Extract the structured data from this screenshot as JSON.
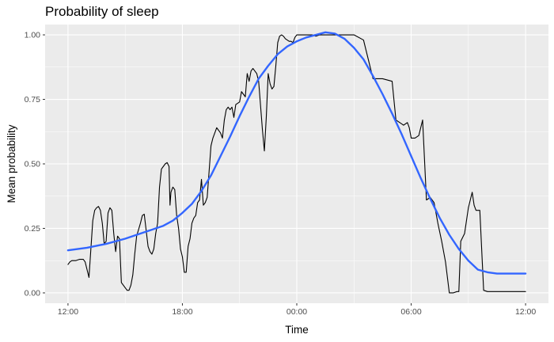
{
  "chart_data": {
    "type": "line",
    "title": "Probability of sleep",
    "xlabel": "Time",
    "ylabel": "Mean probability",
    "x_ticks": [
      "12:00",
      "18:00",
      "00:00",
      "06:00",
      "12:00"
    ],
    "x_tick_hours": [
      0,
      6,
      12,
      18,
      24
    ],
    "y_ticks": [
      "0.00",
      "0.25",
      "0.50",
      "0.75",
      "1.00"
    ],
    "xlim_hours_since_noon": [
      -1.2,
      25.2
    ],
    "ylim": [
      -0.04,
      1.04
    ],
    "grid": true,
    "legend": "none",
    "series": [
      {
        "color": "#000000",
        "x": [
          0.0,
          0.1,
          0.2,
          0.4,
          0.6,
          0.8,
          0.9,
          1.0,
          1.1,
          1.3,
          1.4,
          1.5,
          1.6,
          1.7,
          1.8,
          1.9,
          2.0,
          2.1,
          2.2,
          2.3,
          2.4,
          2.5,
          2.6,
          2.7,
          2.8,
          2.9,
          3.0,
          3.1,
          3.2,
          3.3,
          3.4,
          3.5,
          3.6,
          3.8,
          3.9,
          4.0,
          4.2,
          4.3,
          4.4,
          4.5,
          4.6,
          4.7,
          4.8,
          4.9,
          5.0,
          5.1,
          5.2,
          5.3,
          5.35,
          5.4,
          5.5,
          5.6,
          5.7,
          5.8,
          5.9,
          6.0,
          6.1,
          6.2,
          6.3,
          6.4,
          6.5,
          6.6,
          6.7,
          6.8,
          6.9,
          7.0,
          7.1,
          7.2,
          7.3,
          7.5,
          7.6,
          7.8,
          8.0,
          8.1,
          8.2,
          8.3,
          8.4,
          8.5,
          8.6,
          8.7,
          8.8,
          9.0,
          9.1,
          9.3,
          9.4,
          9.5,
          9.6,
          9.7,
          9.8,
          9.9,
          10.0,
          10.2,
          10.3,
          10.4,
          10.5,
          10.6,
          10.7,
          10.8,
          10.9,
          11.0,
          11.1,
          11.2,
          11.3,
          11.4,
          11.5,
          11.6,
          11.7,
          11.8,
          11.9,
          12.0,
          12.1,
          12.2,
          12.4,
          12.6,
          12.8,
          13.0,
          13.2,
          13.4,
          13.6,
          13.8,
          14.0,
          14.2,
          14.4,
          14.6,
          14.8,
          15.0,
          15.5,
          16.0,
          16.5,
          17.0,
          17.2,
          17.4,
          17.6,
          17.8,
          17.9,
          18.0,
          18.2,
          18.4,
          18.6,
          18.8,
          19.0,
          19.2,
          19.4,
          19.6,
          19.8,
          20.0,
          20.2,
          20.4,
          20.5,
          20.6,
          20.8,
          21.0,
          21.2,
          21.3,
          21.4,
          21.6,
          21.8,
          22.0,
          22.1,
          22.2,
          22.3,
          22.4,
          22.6,
          22.8,
          22.9,
          23.0,
          23.2,
          23.4,
          23.6,
          23.8,
          24.0
        ],
        "y": [
          0.11,
          0.12,
          0.125,
          0.125,
          0.13,
          0.13,
          0.12,
          0.09,
          0.06,
          0.28,
          0.32,
          0.33,
          0.335,
          0.32,
          0.27,
          0.19,
          0.2,
          0.31,
          0.33,
          0.32,
          0.23,
          0.16,
          0.22,
          0.21,
          0.04,
          0.03,
          0.02,
          0.01,
          0.01,
          0.03,
          0.07,
          0.15,
          0.22,
          0.27,
          0.3,
          0.305,
          0.18,
          0.16,
          0.15,
          0.17,
          0.23,
          0.27,
          0.41,
          0.48,
          0.49,
          0.5,
          0.505,
          0.49,
          0.34,
          0.39,
          0.41,
          0.4,
          0.3,
          0.25,
          0.17,
          0.14,
          0.08,
          0.08,
          0.18,
          0.21,
          0.27,
          0.29,
          0.3,
          0.35,
          0.36,
          0.44,
          0.34,
          0.35,
          0.37,
          0.57,
          0.6,
          0.64,
          0.62,
          0.6,
          0.67,
          0.71,
          0.72,
          0.71,
          0.72,
          0.68,
          0.73,
          0.74,
          0.78,
          0.76,
          0.85,
          0.82,
          0.86,
          0.87,
          0.86,
          0.85,
          0.82,
          0.63,
          0.55,
          0.68,
          0.85,
          0.81,
          0.79,
          0.8,
          0.88,
          0.97,
          0.995,
          1.0,
          0.995,
          0.985,
          0.98,
          0.975,
          0.975,
          0.97,
          0.99,
          1.0,
          1.0,
          1.0,
          1.0,
          1.0,
          1.0,
          0.995,
          1.0,
          1.0,
          1.0,
          1.0,
          1.0,
          1.0,
          1.0,
          1.0,
          1.0,
          1.0,
          0.98,
          0.83,
          0.83,
          0.82,
          0.67,
          0.66,
          0.65,
          0.66,
          0.64,
          0.6,
          0.6,
          0.61,
          0.67,
          0.36,
          0.37,
          0.35,
          0.27,
          0.2,
          0.12,
          0.0,
          0.0,
          0.005,
          0.005,
          0.2,
          0.23,
          0.33,
          0.39,
          0.34,
          0.32,
          0.32,
          0.01,
          0.005,
          0.005,
          0.005,
          0.005,
          0.005,
          0.005,
          0.005,
          0.005,
          0.005,
          0.005,
          0.005,
          0.005,
          0.005,
          0.005
        ],
        "note_tail": ""
      },
      {
        "color": "#3366ff",
        "x": [
          0.0,
          1.0,
          2.0,
          3.0,
          4.0,
          5.0,
          5.5,
          6.0,
          6.5,
          7.0,
          7.5,
          8.0,
          8.5,
          9.0,
          9.5,
          10.0,
          10.5,
          11.0,
          11.5,
          12.0,
          12.5,
          13.0,
          13.5,
          14.0,
          14.5,
          15.0,
          15.5,
          16.0,
          16.5,
          17.0,
          17.5,
          18.0,
          18.5,
          19.0,
          19.5,
          20.0,
          20.5,
          21.0,
          21.5,
          22.0,
          22.5,
          23.0,
          23.5,
          24.0
        ],
        "y": [
          0.165,
          0.175,
          0.19,
          0.21,
          0.235,
          0.26,
          0.28,
          0.31,
          0.345,
          0.395,
          0.455,
          0.53,
          0.605,
          0.685,
          0.76,
          0.83,
          0.88,
          0.925,
          0.955,
          0.975,
          0.99,
          1.0,
          1.01,
          1.005,
          0.985,
          0.95,
          0.905,
          0.84,
          0.77,
          0.695,
          0.615,
          0.53,
          0.445,
          0.365,
          0.29,
          0.225,
          0.17,
          0.125,
          0.09,
          0.08,
          0.075,
          0.075,
          0.075,
          0.075
        ]
      }
    ]
  }
}
